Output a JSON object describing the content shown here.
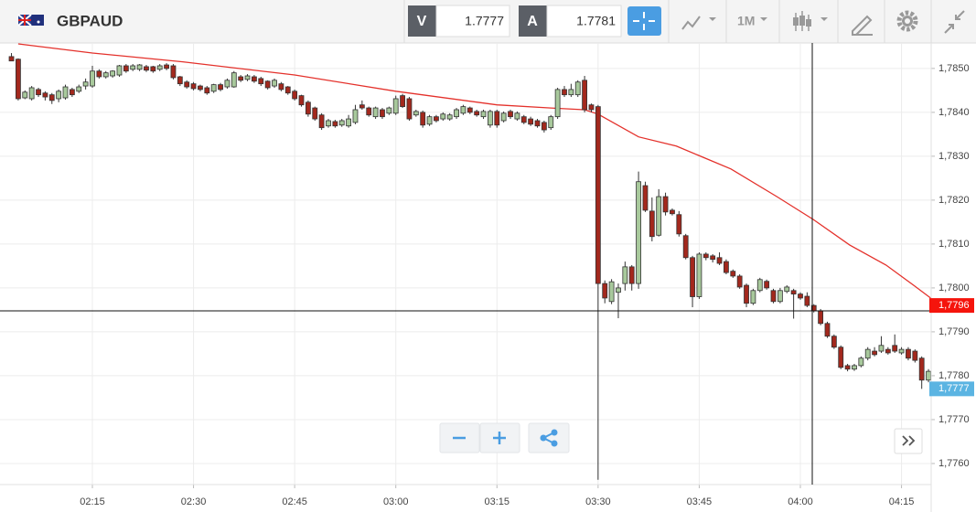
{
  "toolbar": {
    "symbol": "GBPAUD",
    "bid_label": "V",
    "bid": 1.7777,
    "ask_label": "A",
    "ask": 1.7781,
    "timeframe": "1M"
  },
  "chart_data": {
    "type": "candlestick",
    "up_color": "#a8c99c",
    "down_color": "#a3281d",
    "outline_color": "#333333",
    "grid": true,
    "xlim": [
      121.3,
      259.4
    ],
    "ylim": [
      1.77552,
      1.78558
    ],
    "xticks": [
      {
        "value": 135,
        "label": "02:15"
      },
      {
        "value": 150,
        "label": "02:30"
      },
      {
        "value": 165,
        "label": "02:45"
      },
      {
        "value": 180,
        "label": "03:00"
      },
      {
        "value": 195,
        "label": "03:15"
      },
      {
        "value": 210,
        "label": "03:30"
      },
      {
        "value": 225,
        "label": "03:45"
      },
      {
        "value": 240,
        "label": "04:00"
      },
      {
        "value": 255,
        "label": "04:15"
      }
    ],
    "yticks": [
      {
        "value": 1.776,
        "label": "1,7760"
      },
      {
        "value": 1.777,
        "label": "1,7770"
      },
      {
        "value": 1.778,
        "label": "1,7780"
      },
      {
        "value": 1.779,
        "label": "1,7790"
      },
      {
        "value": 1.78,
        "label": "1,7800"
      },
      {
        "value": 1.781,
        "label": "1,7810"
      },
      {
        "value": 1.782,
        "label": "1,7820"
      },
      {
        "value": 1.783,
        "label": "1,7830"
      },
      {
        "value": 1.784,
        "label": "1,7840"
      },
      {
        "value": 1.785,
        "label": "1,7850"
      }
    ],
    "x": [
      123,
      124,
      125,
      126,
      127,
      128,
      129,
      130,
      131,
      132,
      133,
      134,
      135,
      136,
      137,
      138,
      139,
      140,
      141,
      142,
      143,
      144,
      145,
      146,
      147,
      148,
      149,
      150,
      151,
      152,
      153,
      154,
      155,
      156,
      157,
      158,
      159,
      160,
      161,
      162,
      163,
      164,
      165,
      166,
      167,
      168,
      169,
      170,
      171,
      172,
      173,
      174,
      175,
      176,
      177,
      178,
      179,
      180,
      181,
      182,
      183,
      184,
      185,
      186,
      187,
      188,
      189,
      190,
      191,
      192,
      193,
      194,
      195,
      196,
      197,
      198,
      199,
      200,
      201,
      202,
      203,
      204,
      205,
      206,
      207,
      208,
      209,
      210,
      211,
      212,
      213,
      214,
      215,
      216,
      217,
      218,
      219,
      220,
      221,
      222,
      223,
      224,
      225,
      226,
      227,
      228,
      229,
      230,
      231,
      232,
      233,
      234,
      235,
      236,
      237,
      238,
      239,
      240,
      241,
      242,
      243,
      244,
      245,
      246,
      247,
      248,
      249,
      250,
      251,
      252,
      253,
      254,
      255,
      256,
      257,
      258,
      259
    ],
    "ohlc": [
      [
        1.78527,
        1.78535,
        1.78517,
        1.78517
      ],
      [
        1.78521,
        1.78523,
        1.78427,
        1.78431
      ],
      [
        1.78433,
        1.7845,
        1.7843,
        1.78446
      ],
      [
        1.78431,
        1.7846,
        1.78427,
        1.78456
      ],
      [
        1.78452,
        1.78456,
        1.78435,
        1.7844
      ],
      [
        1.78444,
        1.78448,
        1.78427,
        1.78435
      ],
      [
        1.7844,
        1.78444,
        1.78419,
        1.78427
      ],
      [
        1.78431,
        1.78452,
        1.78423,
        1.78448
      ],
      [
        1.78433,
        1.78463,
        1.78429,
        1.78458
      ],
      [
        1.78452,
        1.78456,
        1.78435,
        1.7844
      ],
      [
        1.78448,
        1.78463,
        1.78444,
        1.78458
      ],
      [
        1.7846,
        1.78477,
        1.78452,
        1.78469
      ],
      [
        1.7846,
        1.78506,
        1.78456,
        1.78494
      ],
      [
        1.78494,
        1.78498,
        1.78477,
        1.78481
      ],
      [
        1.78481,
        1.78494,
        1.78477,
        1.7849
      ],
      [
        1.78483,
        1.78496,
        1.78479,
        1.78494
      ],
      [
        1.78485,
        1.78508,
        1.78481,
        1.78506
      ],
      [
        1.78506,
        1.7851,
        1.7849,
        1.78494
      ],
      [
        1.78498,
        1.7851,
        1.78494,
        1.78506
      ],
      [
        1.78498,
        1.7851,
        1.78494,
        1.78508
      ],
      [
        1.78504,
        1.78508,
        1.78492,
        1.78496
      ],
      [
        1.78504,
        1.78506,
        1.7849,
        1.78494
      ],
      [
        1.78498,
        1.7851,
        1.78494,
        1.78506
      ],
      [
        1.78508,
        1.78512,
        1.78496,
        1.785
      ],
      [
        1.78506,
        1.7851,
        1.78475,
        1.78479
      ],
      [
        1.78481,
        1.78483,
        1.7846,
        1.78465
      ],
      [
        1.78469,
        1.78473,
        1.78454,
        1.78458
      ],
      [
        1.78465,
        1.78469,
        1.7845,
        1.78454
      ],
      [
        1.7846,
        1.78463,
        1.78448,
        1.78452
      ],
      [
        1.78456,
        1.7846,
        1.7844,
        1.78444
      ],
      [
        1.78448,
        1.78465,
        1.78444,
        1.78463
      ],
      [
        1.78463,
        1.78467,
        1.78448,
        1.78452
      ],
      [
        1.78458,
        1.78477,
        1.78454,
        1.78473
      ],
      [
        1.78458,
        1.78494,
        1.78456,
        1.7849
      ],
      [
        1.78481,
        1.78485,
        1.78469,
        1.78473
      ],
      [
        1.78475,
        1.78487,
        1.78471,
        1.78483
      ],
      [
        1.78481,
        1.78485,
        1.78467,
        1.78471
      ],
      [
        1.78477,
        1.78481,
        1.7846,
        1.78465
      ],
      [
        1.78471,
        1.78473,
        1.78452,
        1.78456
      ],
      [
        1.7846,
        1.78477,
        1.78456,
        1.78473
      ],
      [
        1.78465,
        1.78469,
        1.78448,
        1.78452
      ],
      [
        1.78458,
        1.7846,
        1.7844,
        1.78444
      ],
      [
        1.78448,
        1.78452,
        1.78427,
        1.78431
      ],
      [
        1.78438,
        1.7844,
        1.78413,
        1.78417
      ],
      [
        1.78423,
        1.78427,
        1.7839,
        1.78396
      ],
      [
        1.7841,
        1.78413,
        1.78381,
        1.78385
      ],
      [
        1.78394,
        1.78398,
        1.7836,
        1.78365
      ],
      [
        1.78369,
        1.78385,
        1.78365,
        1.78381
      ],
      [
        1.78379,
        1.78383,
        1.78365,
        1.78369
      ],
      [
        1.78371,
        1.78385,
        1.78367,
        1.78381
      ],
      [
        1.78369,
        1.78394,
        1.78365,
        1.78385
      ],
      [
        1.78377,
        1.78417,
        1.78373,
        1.78406
      ],
      [
        1.78417,
        1.78427,
        1.78406,
        1.7841
      ],
      [
        1.7841,
        1.78413,
        1.7839,
        1.78394
      ],
      [
        1.7839,
        1.78413,
        1.78385,
        1.7841
      ],
      [
        1.78406,
        1.7841,
        1.78385,
        1.7839
      ],
      [
        1.78398,
        1.78413,
        1.78394,
        1.7841
      ],
      [
        1.78398,
        1.78438,
        1.78394,
        1.78431
      ],
      [
        1.78438,
        1.78442,
        1.7841,
        1.78413
      ],
      [
        1.78431,
        1.78435,
        1.78381,
        1.78385
      ],
      [
        1.78394,
        1.78406,
        1.7839,
        1.78402
      ],
      [
        1.784,
        1.78404,
        1.78365,
        1.78371
      ],
      [
        1.78373,
        1.78394,
        1.78369,
        1.7839
      ],
      [
        1.7839,
        1.78394,
        1.78377,
        1.78381
      ],
      [
        1.78385,
        1.784,
        1.78381,
        1.78396
      ],
      [
        1.78385,
        1.78398,
        1.78381,
        1.78394
      ],
      [
        1.7839,
        1.7841,
        1.78385,
        1.78406
      ],
      [
        1.78398,
        1.78417,
        1.78394,
        1.78413
      ],
      [
        1.7841,
        1.78413,
        1.78396,
        1.784
      ],
      [
        1.78402,
        1.78406,
        1.7839,
        1.78394
      ],
      [
        1.7839,
        1.78406,
        1.78385,
        1.78402
      ],
      [
        1.78371,
        1.78406,
        1.78365,
        1.78402
      ],
      [
        1.78402,
        1.78406,
        1.78365,
        1.78371
      ],
      [
        1.78381,
        1.78402,
        1.78377,
        1.78398
      ],
      [
        1.78402,
        1.78406,
        1.78385,
        1.7839
      ],
      [
        1.78385,
        1.78402,
        1.78381,
        1.78398
      ],
      [
        1.7839,
        1.78394,
        1.78373,
        1.78377
      ],
      [
        1.78385,
        1.7839,
        1.78369,
        1.78373
      ],
      [
        1.78381,
        1.78385,
        1.78365,
        1.78369
      ],
      [
        1.78377,
        1.78381,
        1.78354,
        1.7836
      ],
      [
        1.78365,
        1.78394,
        1.7836,
        1.7839
      ],
      [
        1.7839,
        1.78456,
        1.78385,
        1.78452
      ],
      [
        1.78452,
        1.7846,
        1.78435,
        1.7844
      ],
      [
        1.7844,
        1.78465,
        1.78435,
        1.78452
      ],
      [
        1.7844,
        1.78473,
        1.78435,
        1.78469
      ],
      [
        1.78473,
        1.78483,
        1.784,
        1.78406
      ],
      [
        1.78417,
        1.7842,
        1.784,
        1.78406
      ],
      [
        1.78413,
        1.78417,
        1.77563,
        1.7801
      ],
      [
        1.7801,
        1.78017,
        1.77965,
        1.77977
      ],
      [
        1.77969,
        1.7802,
        1.77963,
        1.78014
      ],
      [
        1.7799,
        1.7801,
        1.77931,
        1.78
      ],
      [
        1.7801,
        1.7806,
        1.77994,
        1.78048
      ],
      [
        1.78048,
        1.78052,
        1.77994,
        1.7801
      ],
      [
        1.7801,
        1.78265,
        1.77998,
        1.78242
      ],
      [
        1.78233,
        1.78242,
        1.78173,
        1.78177
      ],
      [
        1.78175,
        1.78206,
        1.78106,
        1.78117
      ],
      [
        1.7812,
        1.78225,
        1.78117,
        1.78208
      ],
      [
        1.78208,
        1.78217,
        1.78165,
        1.78173
      ],
      [
        1.78177,
        1.78181,
        1.78165,
        1.78169
      ],
      [
        1.78167,
        1.78175,
        1.78117,
        1.78123
      ],
      [
        1.78119,
        1.78123,
        1.78065,
        1.78069
      ],
      [
        1.78069,
        1.78073,
        1.77956,
        1.7798
      ],
      [
        1.7798,
        1.78081,
        1.77975,
        1.78077
      ],
      [
        1.78077,
        1.78081,
        1.78063,
        1.78069
      ],
      [
        1.78073,
        1.78077,
        1.78058,
        1.78065
      ],
      [
        1.78069,
        1.78081,
        1.78052,
        1.78056
      ],
      [
        1.7806,
        1.78065,
        1.78031,
        1.78035
      ],
      [
        1.78038,
        1.78042,
        1.78023,
        1.78027
      ],
      [
        1.78027,
        1.78031,
        1.77998,
        1.78002
      ],
      [
        1.78006,
        1.7801,
        1.77956,
        1.77965
      ],
      [
        1.77965,
        1.77998,
        1.77961,
        1.77994
      ],
      [
        1.77994,
        1.78023,
        1.7799,
        1.78019
      ],
      [
        1.78015,
        1.78019,
        1.77996,
        1.78
      ],
      [
        1.77994,
        1.77998,
        1.77965,
        1.77969
      ],
      [
        1.77969,
        1.78,
        1.77965,
        1.77994
      ],
      [
        1.77992,
        1.78006,
        1.77988,
        1.78002
      ],
      [
        1.77994,
        1.77998,
        1.7793,
        1.77986
      ],
      [
        1.77986,
        1.7799,
        1.77973,
        1.77977
      ],
      [
        1.77981,
        1.7799,
        1.77956,
        1.7796
      ],
      [
        1.7796,
        1.77963,
        1.77944,
        1.77948
      ],
      [
        1.77948,
        1.77952,
        1.77915,
        1.77919
      ],
      [
        1.77919,
        1.77923,
        1.77886,
        1.7789
      ],
      [
        1.7789,
        1.77894,
        1.77861,
        1.77865
      ],
      [
        1.77865,
        1.77869,
        1.77815,
        1.77819
      ],
      [
        1.77823,
        1.77827,
        1.7781,
        1.77815
      ],
      [
        1.77815,
        1.77827,
        1.77811,
        1.77823
      ],
      [
        1.77823,
        1.77844,
        1.77819,
        1.7784
      ],
      [
        1.7784,
        1.77865,
        1.77835,
        1.7786
      ],
      [
        1.77856,
        1.77865,
        1.77844,
        1.77848
      ],
      [
        1.77856,
        1.7789,
        1.77852,
        1.77869
      ],
      [
        1.7786,
        1.77865,
        1.77848,
        1.77852
      ],
      [
        1.77869,
        1.77894,
        1.77852,
        1.77856
      ],
      [
        1.77852,
        1.77865,
        1.77848,
        1.7786
      ],
      [
        1.7786,
        1.77865,
        1.77835,
        1.7784
      ],
      [
        1.77856,
        1.7786,
        1.7783,
        1.77835
      ],
      [
        1.7784,
        1.77844,
        1.7777,
        1.7779
      ],
      [
        1.7779,
        1.77815,
        1.77785,
        1.7781
      ]
    ],
    "moving_average": {
      "color": "#e4312b",
      "x": [
        124,
        135,
        148.4,
        165,
        180,
        195,
        203,
        208,
        210,
        216,
        221.6,
        229.7,
        236.5,
        241.9,
        247.3,
        252.7,
        256.8,
        259.3
      ],
      "values": [
        1.78556,
        1.78535,
        1.78515,
        1.78485,
        1.78448,
        1.78417,
        1.7841,
        1.78406,
        1.78396,
        1.78344,
        1.78323,
        1.78271,
        1.78208,
        1.78156,
        1.78098,
        1.78052,
        1.78006,
        1.77977
      ]
    },
    "price_labels": [
      {
        "value": 1.7796,
        "label": "1,7796",
        "color": "#f5140c"
      },
      {
        "value": 1.7777,
        "label": "1,7777",
        "color": "#5bb4e2"
      }
    ]
  }
}
